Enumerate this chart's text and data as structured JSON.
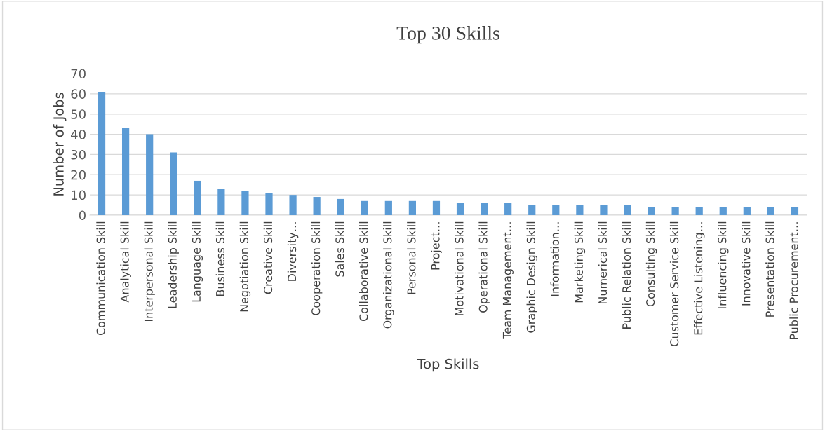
{
  "chart_data": {
    "type": "bar",
    "title": "Top 30 Skills",
    "xlabel": "Top Skills",
    "ylabel": "Number of Jobs",
    "categories": [
      "Communication Skill",
      "Analytical Skill",
      "Interpersonal Skill",
      "Leadership Skill",
      "Language Skill",
      "Business Skill",
      "Negotiation Skill",
      "Creative Skill",
      "Diversity…",
      "Cooperation Skill",
      "Sales Skill",
      "Collaborative Skill",
      "Organizational Skill",
      "Personal Skill",
      "Project…",
      "Motivational Skill",
      "Operational Skill",
      "Team Management…",
      "Graphic Design Skill",
      "Information…",
      "Marketing Skill",
      "Numerical Skill",
      "Public Relation Skill",
      "Consulting Skill",
      "Customer Service Skill",
      "Effective Listening…",
      "Influencing Skill",
      "Innovative Skill",
      "Presentation Skill",
      "Public Procurement…"
    ],
    "values": [
      61,
      43,
      40,
      31,
      17,
      13,
      12,
      11,
      10,
      9,
      8,
      7,
      7,
      7,
      7,
      6,
      6,
      6,
      5,
      5,
      5,
      5,
      5,
      4,
      4,
      4,
      4,
      4,
      4,
      4
    ],
    "color": "#5b9bd5",
    "ylim": [
      0,
      70
    ],
    "yticks": [
      0,
      10,
      20,
      30,
      40,
      50,
      60,
      70
    ],
    "grid": "y"
  }
}
